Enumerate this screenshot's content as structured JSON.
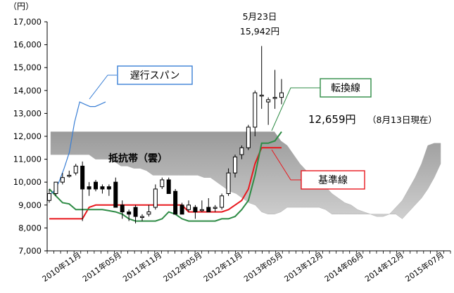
{
  "chart_data": {
    "type": "candlestick-ichimoku",
    "unit_label": "（円）",
    "y_ticks": [
      "17,000",
      "16,000",
      "15,000",
      "14,000",
      "13,000",
      "12,000",
      "11,000",
      "10,000",
      "9,000",
      "8,000",
      "7,000"
    ],
    "ylim": [
      7000,
      17000
    ],
    "x_ticks": [
      "2010年11月",
      "2011年05月",
      "2011年11月",
      "2012年05月",
      "2012年11月",
      "2013年05月",
      "2013年12月",
      "2014年06月",
      "2014年12月",
      "2015年07月"
    ],
    "candles": [
      {
        "o": 9200,
        "h": 9700,
        "l": 9100,
        "c": 9500
      },
      {
        "o": 9500,
        "h": 10000,
        "l": 9400,
        "c": 10000
      },
      {
        "o": 10000,
        "h": 10400,
        "l": 9900,
        "c": 10200
      },
      {
        "o": 10300,
        "h": 10500,
        "l": 10200,
        "c": 10300
      },
      {
        "o": 10400,
        "h": 10800,
        "l": 10300,
        "c": 10700
      },
      {
        "o": 10700,
        "h": 10900,
        "l": 8300,
        "c": 9700
      },
      {
        "o": 9800,
        "h": 10000,
        "l": 9400,
        "c": 9700
      },
      {
        "o": 10000,
        "h": 10100,
        "l": 9600,
        "c": 9700
      },
      {
        "o": 9800,
        "h": 9900,
        "l": 9500,
        "c": 9700
      },
      {
        "o": 9800,
        "h": 9900,
        "l": 9400,
        "c": 9700
      },
      {
        "o": 10000,
        "h": 10200,
        "l": 8900,
        "c": 8900
      },
      {
        "o": 9000,
        "h": 9200,
        "l": 8400,
        "c": 8700
      },
      {
        "o": 8700,
        "h": 8800,
        "l": 8300,
        "c": 8600
      },
      {
        "o": 8900,
        "h": 9000,
        "l": 8200,
        "c": 8500
      },
      {
        "o": 8500,
        "h": 8600,
        "l": 8300,
        "c": 8500
      },
      {
        "o": 8600,
        "h": 9000,
        "l": 8500,
        "c": 8700
      },
      {
        "o": 8900,
        "h": 9900,
        "l": 8800,
        "c": 9700
      },
      {
        "o": 9800,
        "h": 10200,
        "l": 9700,
        "c": 10100
      },
      {
        "o": 10100,
        "h": 10200,
        "l": 9600,
        "c": 9500
      },
      {
        "o": 9600,
        "h": 9700,
        "l": 8700,
        "c": 8600
      },
      {
        "o": 9000,
        "h": 9100,
        "l": 8600,
        "c": 8600
      },
      {
        "o": 8800,
        "h": 9200,
        "l": 8700,
        "c": 9000
      },
      {
        "o": 8900,
        "h": 9000,
        "l": 8400,
        "c": 8700
      },
      {
        "o": 8800,
        "h": 9200,
        "l": 8700,
        "c": 8800
      },
      {
        "o": 8900,
        "h": 9300,
        "l": 8700,
        "c": 8700
      },
      {
        "o": 8900,
        "h": 9000,
        "l": 8700,
        "c": 8900
      },
      {
        "o": 8900,
        "h": 9500,
        "l": 8800,
        "c": 9400
      },
      {
        "o": 9500,
        "h": 10600,
        "l": 9400,
        "c": 10400
      },
      {
        "o": 10400,
        "h": 11200,
        "l": 10200,
        "c": 11100
      },
      {
        "o": 11200,
        "h": 11600,
        "l": 11000,
        "c": 11500
      },
      {
        "o": 11500,
        "h": 12500,
        "l": 11400,
        "c": 12400
      },
      {
        "o": 12400,
        "h": 14000,
        "l": 12000,
        "c": 13900
      },
      {
        "o": 13800,
        "h": 15942,
        "l": 13200,
        "c": 13800
      },
      {
        "o": 13500,
        "h": 13700,
        "l": 12500,
        "c": 13600
      },
      {
        "o": 13700,
        "h": 14900,
        "l": 13200,
        "c": 13700
      },
      {
        "o": 13700,
        "h": 14500,
        "l": 13400,
        "c": 13900
      }
    ],
    "tenkan": [
      9700,
      9400,
      9100,
      9050,
      8800,
      8800,
      8800,
      8800,
      8800,
      8750,
      8700,
      8600,
      8400,
      8300,
      8300,
      8300,
      8300,
      8400,
      8700,
      8600,
      8400,
      8300,
      8300,
      8300,
      8300,
      8300,
      8400,
      8400,
      8500,
      8800,
      9200,
      10300,
      11700,
      11700,
      11800,
      12200
    ],
    "kijun": [
      8400,
      8400,
      8400,
      8400,
      8400,
      8400,
      8900,
      9000,
      9000,
      9000,
      9000,
      9000,
      9000,
      9000,
      9000,
      9000,
      9000,
      9000,
      9000,
      9000,
      9000,
      8700,
      8700,
      8700,
      8700,
      8700,
      8700,
      8800,
      9000,
      9200,
      9700,
      10800,
      11500,
      11500,
      11500,
      11500
    ],
    "chikou": [
      9400,
      9600,
      10000,
      10600,
      11300,
      12600,
      13500,
      13400,
      13300,
      13300,
      13400,
      13500
    ],
    "senkou_a": [
      12200,
      12200,
      12200,
      12200,
      12200,
      12200,
      12200,
      12200,
      12200,
      12200,
      12200,
      12200,
      12200,
      12200,
      12200,
      12200,
      12200,
      12200,
      12200,
      12200,
      12200,
      12200,
      12200,
      12200,
      12200,
      12200,
      12200,
      12200,
      12200,
      12200,
      12200,
      12200,
      12200,
      12200,
      12200,
      12200,
      11800,
      11600,
      11200,
      10800,
      10500,
      10200,
      10000,
      9800,
      9500,
      9300,
      9100,
      9000,
      8800,
      8700,
      8600,
      8500,
      8500,
      8600,
      8900,
      9200,
      9700,
      10200,
      10800,
      11600,
      11700,
      11700
    ],
    "senkou_b": [
      11200,
      11200,
      11200,
      11200,
      11200,
      11200,
      11200,
      11000,
      11000,
      11000,
      10900,
      10700,
      10700,
      10600,
      10600,
      10500,
      10300,
      10300,
      10300,
      10300,
      10300,
      10300,
      10300,
      10300,
      10200,
      10200,
      10000,
      9800,
      9600,
      9500,
      9300,
      9100,
      9000,
      8700,
      8600,
      8600,
      8700,
      8900,
      8900,
      8900,
      8900,
      8900,
      8900,
      8800,
      8600,
      8600,
      8600,
      8600,
      8600,
      8600,
      8600,
      8600,
      8600,
      8600,
      8600,
      8400,
      8700,
      9000,
      9300,
      9700,
      10200,
      10800
    ],
    "annotations": {
      "peak_date": "5月23日",
      "peak_value": "15,942円",
      "current_value": "12,659円",
      "current_date": "（8月13日現在）",
      "cloud_label": "抵抗帯（雲）",
      "chikou_label": "遅行スパン",
      "tenkan_label": "転換線",
      "kijun_label": "基準線"
    },
    "colors": {
      "cloud": "#a6a6a6",
      "chikou": "#3a7fd5",
      "tenkan": "#2e8b45",
      "kijun": "#e8181e",
      "candle_up": "#ffffff",
      "candle_down": "#000000"
    }
  }
}
